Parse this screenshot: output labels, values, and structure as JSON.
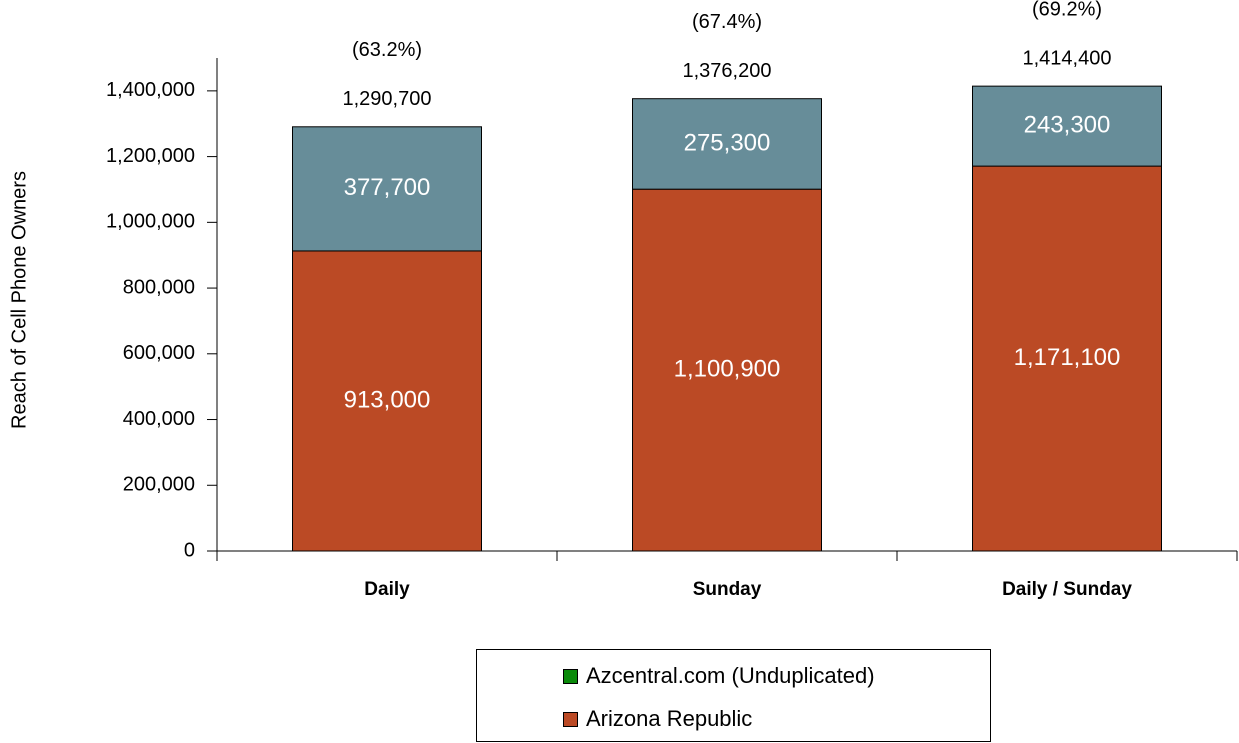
{
  "chart_data": {
    "type": "stacked_bar",
    "y_axis_label": "Reach of Cell Phone Owners",
    "categories": [
      "Daily",
      "Sunday",
      "Daily / Sunday"
    ],
    "series": [
      {
        "name": "Arizona Republic",
        "color": "#BB4A25",
        "values": [
          913000,
          1100900,
          1171100
        ],
        "value_labels": [
          "913,000",
          "1,100,900",
          "1,171,100"
        ]
      },
      {
        "name": "Azcentral.com (Unduplicated)",
        "color": "#678D99",
        "legend_color": "#0A8A0A",
        "values": [
          377700,
          275300,
          243300
        ],
        "value_labels": [
          "377,700",
          "275,300",
          "243,300"
        ]
      }
    ],
    "totals": [
      1290700,
      1376200,
      1414400
    ],
    "total_labels": [
      "1,290,700",
      "1,376,200",
      "1,414,400"
    ],
    "shares": [
      63.2,
      67.4,
      69.2
    ],
    "share_labels": [
      "(63.2%)",
      "(67.4%)",
      "(69.2%)"
    ],
    "ylim": [
      0,
      1500000
    ],
    "yticks": [
      0,
      {
        "value": 200000,
        "label": "200,000"
      },
      {
        "value": 400000,
        "label": "400,000"
      },
      {
        "value": 600000,
        "label": "600,000"
      },
      {
        "value": 800000,
        "label": "800,000"
      },
      {
        "value": 1000000,
        "label": "1,000,000"
      },
      {
        "value": 1200000,
        "label": "1,200,000"
      },
      {
        "value": 1400000,
        "label": "1,400,000"
      }
    ],
    "legend": "bottom"
  }
}
